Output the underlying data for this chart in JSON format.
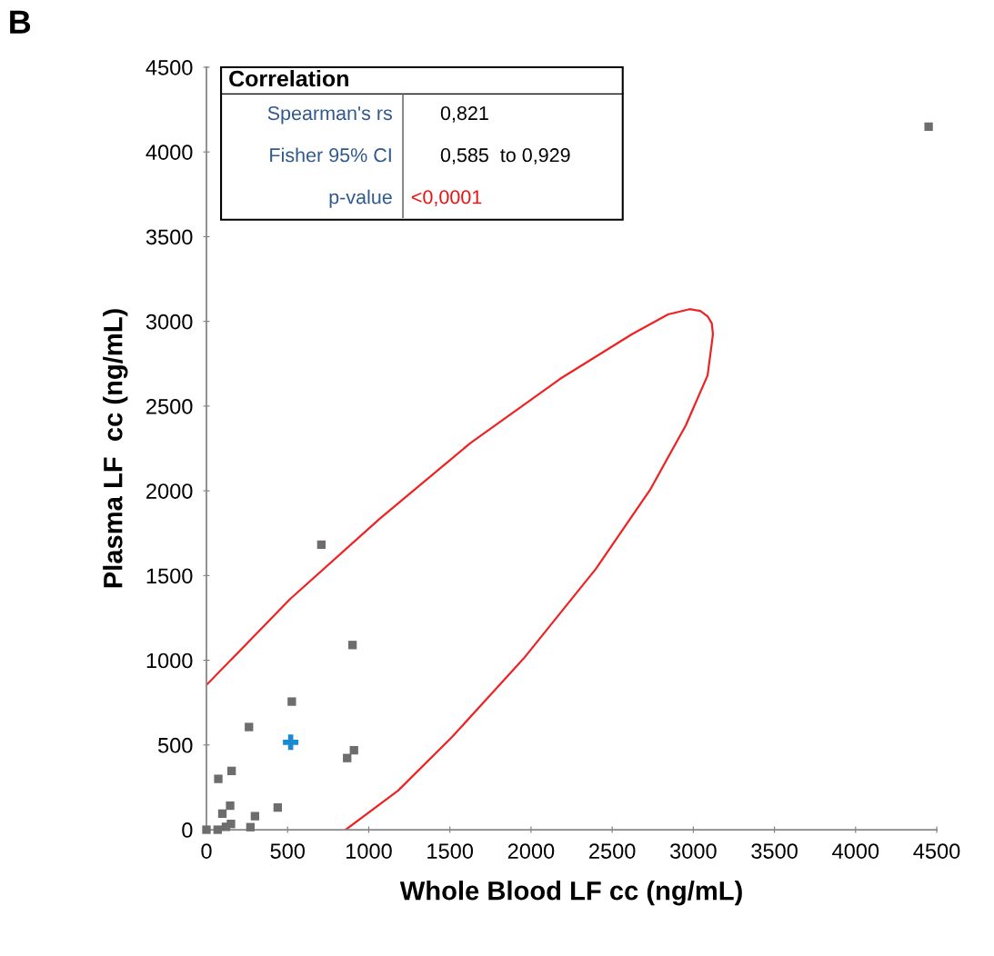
{
  "chart_data": {
    "type": "scatter",
    "xlabel": "Whole Blood LF cc (ng/mL)",
    "ylabel": "Plasma LF  cc (ng/mL)",
    "xlim": [
      0,
      4500
    ],
    "ylim": [
      0,
      4500
    ],
    "xticks": [
      0,
      500,
      1000,
      1500,
      2000,
      2500,
      3000,
      3500,
      4000,
      4500
    ],
    "yticks": [
      0,
      500,
      1000,
      1500,
      2000,
      2500,
      3000,
      3500,
      4000,
      4500
    ],
    "grid": false,
    "legend": false,
    "annotations": [
      "B",
      "Correlation",
      "Spearman's rs",
      "0,821",
      "Fisher 95% CI",
      "0,585  to 0,929",
      "p-value",
      "<0,0001"
    ],
    "series": [
      {
        "color": "#6d6d6d",
        "marker": "square",
        "x": [
          0,
          69,
          120,
          151,
          98,
          146,
          271,
          299,
          439,
          73,
          155,
          262,
          526,
          867,
          909,
          900,
          708,
          4450
        ],
        "values": [
          0,
          0,
          17,
          34,
          95,
          142,
          15,
          80,
          131,
          300,
          347,
          606,
          756,
          423,
          469,
          1090,
          1682,
          4149
        ]
      },
      {
        "color": "#1a8ad4",
        "marker": "cross",
        "x": [
          519
        ],
        "values": [
          516
        ]
      },
      {
        "type": "line",
        "color": "#ee2222",
        "marker": "none",
        "line_style": "solid",
        "x": [
          0,
          182,
          515,
          1069,
          1624,
          2178,
          2622,
          2844,
          2977,
          3043,
          3088,
          3114,
          3121,
          3088,
          2954,
          2733,
          2400,
          1956,
          1513,
          1180,
          858
        ],
        "values": [
          854,
          1033,
          1361,
          1836,
          2280,
          2660,
          2924,
          3041,
          3072,
          3062,
          3030,
          2988,
          2924,
          2681,
          2387,
          2005,
          1540,
          1012,
          547,
          230,
          0
        ]
      }
    ]
  }
}
